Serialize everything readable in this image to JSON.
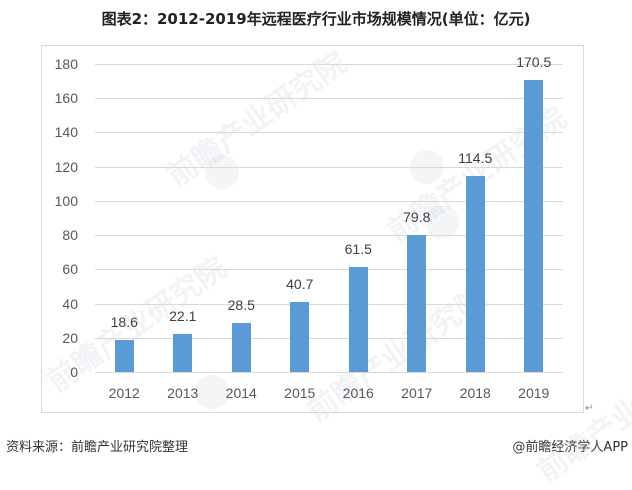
{
  "title": "图表2：2012-2019年远程医疗行业市场规模情况(单位：亿元)",
  "footer": {
    "source": "资料来源：前瞻产业研究院整理",
    "brand": "@前瞻经济学人APP"
  },
  "watermark": {
    "text": "前瞻产业研究院"
  },
  "colors": {
    "bar": "#5b9bd5",
    "grid": "#d9d9d9",
    "frame": "#d9d9d9"
  },
  "chart_data": {
    "type": "bar",
    "title": "图表2：2012-2019年远程医疗行业市场规模情况(单位：亿元)",
    "xlabel": "",
    "ylabel": "亿元",
    "categories": [
      "2012",
      "2013",
      "2014",
      "2015",
      "2016",
      "2017",
      "2018",
      "2019"
    ],
    "values": [
      18.6,
      22.1,
      28.5,
      40.7,
      61.5,
      79.8,
      114.5,
      170.5
    ],
    "data_labels": [
      "18.6",
      "22.1",
      "28.5",
      "40.7",
      "61.5",
      "79.8",
      "114.5",
      "170.5"
    ],
    "ylim": [
      0,
      180
    ],
    "yticks": [
      0,
      20,
      40,
      60,
      80,
      100,
      120,
      140,
      160,
      180
    ],
    "grid": true,
    "legend": "none"
  }
}
